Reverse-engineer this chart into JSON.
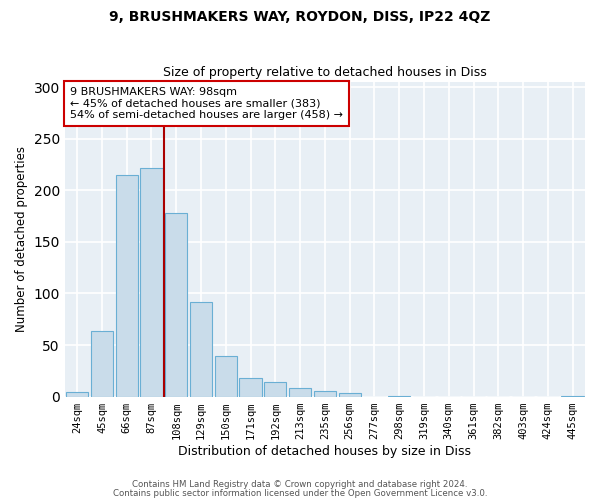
{
  "title": "9, BRUSHMAKERS WAY, ROYDON, DISS, IP22 4QZ",
  "subtitle": "Size of property relative to detached houses in Diss",
  "xlabel": "Distribution of detached houses by size in Diss",
  "ylabel": "Number of detached properties",
  "bar_labels": [
    "24sqm",
    "45sqm",
    "66sqm",
    "87sqm",
    "108sqm",
    "129sqm",
    "150sqm",
    "171sqm",
    "192sqm",
    "213sqm",
    "235sqm",
    "256sqm",
    "277sqm",
    "298sqm",
    "319sqm",
    "340sqm",
    "361sqm",
    "382sqm",
    "403sqm",
    "424sqm",
    "445sqm"
  ],
  "bar_values": [
    4,
    64,
    215,
    222,
    178,
    92,
    39,
    18,
    14,
    8,
    5,
    3,
    0,
    1,
    0,
    0,
    0,
    0,
    0,
    0,
    1
  ],
  "bar_color": "#c9dcea",
  "bar_edge_color": "#6aafd4",
  "vline_x_idx": 4,
  "vline_color": "#aa0000",
  "annotation_title": "9 BRUSHMAKERS WAY: 98sqm",
  "annotation_line1": "← 45% of detached houses are smaller (383)",
  "annotation_line2": "54% of semi-detached houses are larger (458) →",
  "annotation_box_color": "#ffffff",
  "annotation_box_edge_color": "#cc0000",
  "ylim": [
    0,
    305
  ],
  "bg_color": "#e8eff5",
  "grid_color": "#ffffff",
  "footer1": "Contains HM Land Registry data © Crown copyright and database right 2024.",
  "footer2": "Contains public sector information licensed under the Open Government Licence v3.0."
}
